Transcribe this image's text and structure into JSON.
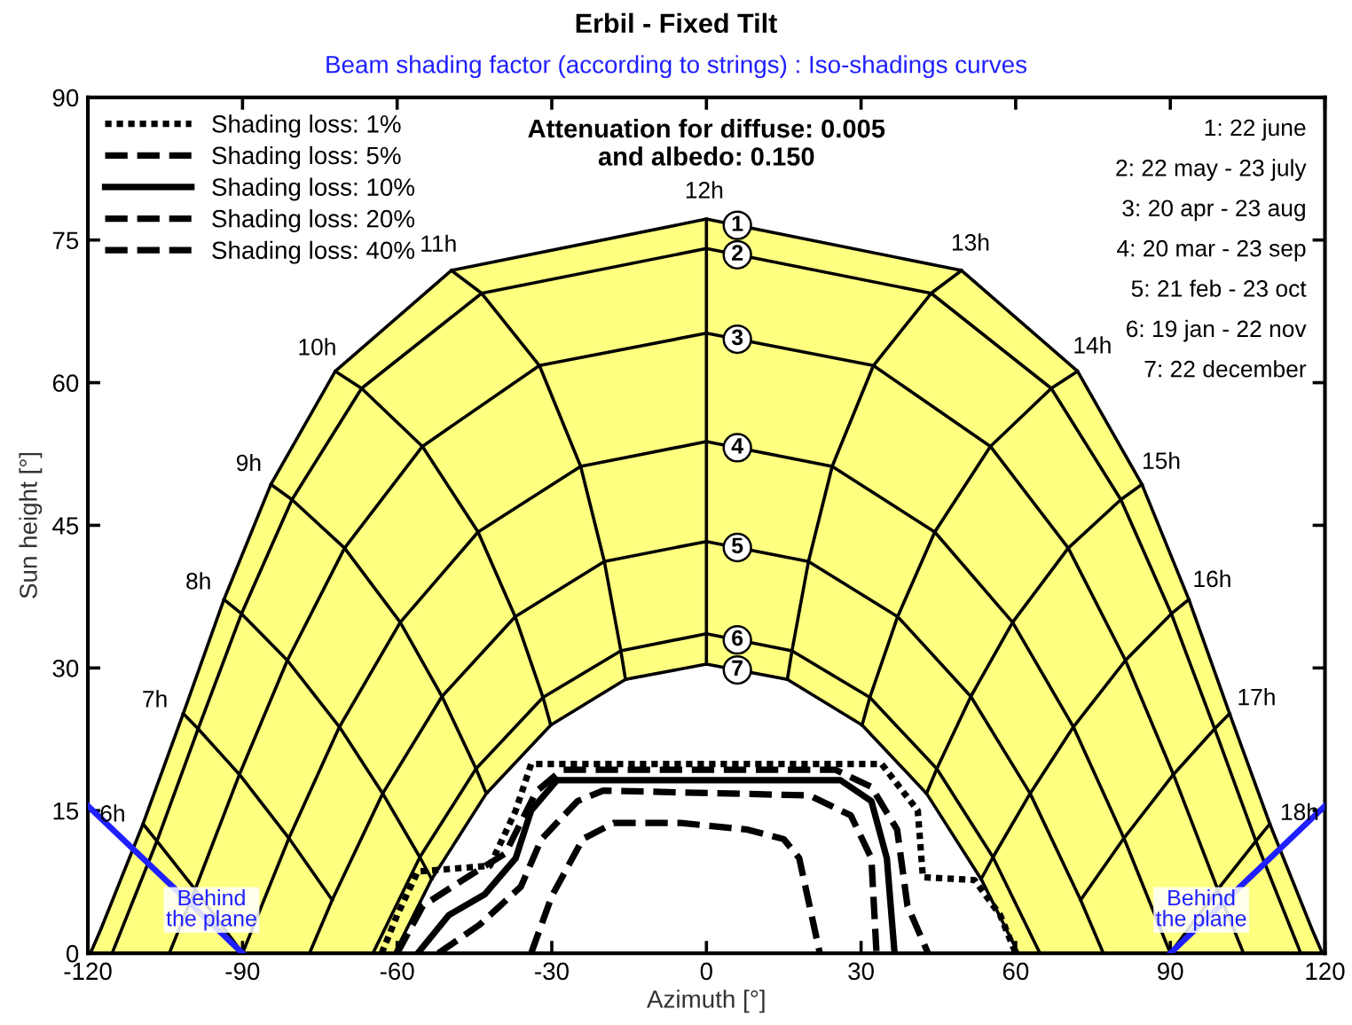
{
  "chart_data": {
    "type": "line",
    "title": "Erbil - Fixed Tilt",
    "subtitle": "Beam shading factor (according to strings) : Iso-shadings curves",
    "xlabel": "Azimuth [°]",
    "ylabel": "Sun height [°]",
    "xlim": [
      -120,
      120
    ],
    "xticks": [
      -120,
      -90,
      -60,
      -30,
      0,
      30,
      60,
      90,
      120
    ],
    "ylim": [
      0,
      90
    ],
    "yticks": [
      0,
      15,
      30,
      45,
      60,
      75,
      90
    ],
    "grid": false,
    "legend": "top left",
    "series": [
      {
        "name": "1",
        "type": "area",
        "color": "#ffff80",
        "x": [
          -119.5,
          -117.5,
          -109.3,
          -101.5,
          -93.6,
          -84.5,
          -72.0,
          -49.5,
          0,
          49.5,
          72.0,
          84.5,
          93.6,
          101.5,
          109.3,
          117.5,
          119.5
        ],
        "values": [
          0,
          2.5,
          13.6,
          25.2,
          37.2,
          49.3,
          61.2,
          71.8,
          77.2,
          71.8,
          61.2,
          49.3,
          37.2,
          25.2,
          13.6,
          2.5,
          0
        ]
      },
      {
        "name": "7",
        "type": "area",
        "color": "#ffffff",
        "x": [
          -60.5,
          -53.3,
          -42.7,
          -30.2,
          -15.7,
          0,
          15.7,
          30.2,
          42.7,
          53.3,
          60.5
        ],
        "values": [
          0,
          7.8,
          16.8,
          24.0,
          28.8,
          30.4,
          28.8,
          24.0,
          16.8,
          7.8,
          0
        ]
      },
      {
        "name": "2",
        "color": "#000000",
        "x": [
          -115.3,
          -106.6,
          -98.6,
          -90.2,
          -80.4,
          -66.9,
          -43.6,
          0,
          43.6,
          66.9,
          80.4,
          90.2,
          98.6,
          106.6,
          115.3
        ],
        "values": [
          0,
          11.8,
          23.6,
          35.7,
          47.7,
          59.4,
          69.4,
          74.1,
          69.4,
          59.4,
          47.7,
          35.7,
          23.6,
          11.8,
          0
        ]
      },
      {
        "name": "3",
        "color": "#000000",
        "x": [
          -104.2,
          -99.2,
          -90.6,
          -81.3,
          -70.2,
          -55.1,
          -32.4,
          0,
          32.4,
          55.1,
          70.2,
          81.3,
          90.6,
          99.2,
          104.2
        ],
        "values": [
          0,
          6.7,
          18.8,
          30.8,
          42.6,
          53.3,
          61.8,
          65.2,
          61.8,
          53.3,
          42.6,
          30.8,
          18.8,
          6.7,
          0
        ]
      },
      {
        "name": "4",
        "color": "#000000",
        "x": [
          -90,
          -81.0,
          -71.2,
          -59.4,
          -44.3,
          -24.4,
          0,
          24.4,
          44.3,
          59.4,
          71.2,
          81.0,
          90
        ],
        "values": [
          0,
          12.1,
          23.8,
          34.8,
          44.3,
          51.2,
          53.8,
          51.2,
          44.3,
          34.8,
          23.8,
          12.1,
          0
        ]
      },
      {
        "name": "5",
        "color": "#000000",
        "x": [
          -77.0,
          -72.6,
          -62.8,
          -51.3,
          -37.1,
          -19.8,
          0,
          19.8,
          37.1,
          51.3,
          62.8,
          72.6,
          77.0
        ],
        "values": [
          0,
          5.6,
          16.8,
          27.0,
          35.4,
          41.2,
          43.3,
          41.2,
          35.4,
          27.0,
          16.8,
          5.6,
          0
        ]
      },
      {
        "name": "6",
        "color": "#000000",
        "x": [
          -64.7,
          -55.6,
          -44.7,
          -31.7,
          -16.6,
          0,
          16.6,
          31.7,
          44.7,
          55.6,
          64.7
        ],
        "values": [
          0,
          10.1,
          19.4,
          26.9,
          31.8,
          33.6,
          31.8,
          26.9,
          19.4,
          10.1,
          0
        ]
      },
      {
        "color": "#000000",
        "x": [
          -109.3,
          -106.6,
          -99.2,
          -90
        ],
        "values": [
          13.6,
          11.8,
          6.7,
          0
        ]
      },
      {
        "color": "#000000",
        "x": [
          -101.5,
          -98.6,
          -90.6,
          -81.0,
          -72.6
        ],
        "values": [
          25.2,
          23.6,
          18.8,
          12.1,
          5.6
        ]
      },
      {
        "color": "#000000",
        "x": [
          -93.6,
          -90.2,
          -81.3,
          -71.2,
          -62.8,
          -55.6,
          -53.3
        ],
        "values": [
          37.2,
          35.7,
          30.8,
          23.8,
          16.8,
          10.1,
          7.8
        ]
      },
      {
        "color": "#000000",
        "x": [
          -84.5,
          -80.4,
          -70.2,
          -59.4,
          -51.3,
          -44.7,
          -42.7
        ],
        "values": [
          49.3,
          47.7,
          42.6,
          34.8,
          27.0,
          19.4,
          16.8
        ]
      },
      {
        "color": "#000000",
        "x": [
          -72.0,
          -66.9,
          -55.1,
          -44.3,
          -37.1,
          -31.7,
          -30.2
        ],
        "values": [
          61.2,
          59.4,
          53.3,
          44.3,
          35.4,
          26.9,
          24.0
        ]
      },
      {
        "color": "#000000",
        "x": [
          -49.5,
          -43.6,
          -32.4,
          -24.4,
          -19.8,
          -16.6,
          -15.7
        ],
        "values": [
          71.8,
          69.4,
          61.8,
          51.2,
          41.2,
          31.8,
          28.8
        ]
      },
      {
        "color": "#000000",
        "x": [
          0,
          0,
          0,
          0,
          0,
          0,
          0
        ],
        "values": [
          77.2,
          74.1,
          65.2,
          53.8,
          43.3,
          33.6,
          30.4
        ]
      },
      {
        "color": "#000000",
        "x": [
          49.5,
          43.6,
          32.4,
          24.4,
          19.8,
          16.6,
          15.7
        ],
        "values": [
          71.8,
          69.4,
          61.8,
          51.2,
          41.2,
          31.8,
          28.8
        ]
      },
      {
        "color": "#000000",
        "x": [
          72.0,
          66.9,
          55.1,
          44.3,
          37.1,
          31.7,
          30.2
        ],
        "values": [
          61.2,
          59.4,
          53.3,
          44.3,
          35.4,
          26.9,
          24.0
        ]
      },
      {
        "color": "#000000",
        "x": [
          84.5,
          80.4,
          70.2,
          59.4,
          51.3,
          44.7,
          42.7
        ],
        "values": [
          49.3,
          47.7,
          42.6,
          34.8,
          27.0,
          19.4,
          16.8
        ]
      },
      {
        "color": "#000000",
        "x": [
          93.6,
          90.2,
          81.3,
          71.2,
          62.8,
          55.6,
          53.3
        ],
        "values": [
          37.2,
          35.7,
          30.8,
          23.8,
          16.8,
          10.1,
          7.8
        ]
      },
      {
        "color": "#000000",
        "x": [
          101.5,
          98.6,
          90.6,
          81.0,
          72.6
        ],
        "values": [
          25.2,
          23.6,
          18.8,
          12.1,
          5.6
        ]
      },
      {
        "color": "#000000",
        "x": [
          109.3,
          106.6,
          99.2,
          90
        ],
        "values": [
          13.6,
          11.8,
          6.7,
          0
        ]
      },
      {
        "name": "Shading loss: 1%",
        "color": "#000000",
        "line_style": "dotted",
        "x": [
          -63,
          -60,
          -56,
          -42,
          -37,
          -34,
          34,
          41,
          42,
          52,
          57,
          60
        ],
        "values": [
          0,
          4,
          8.6,
          9.2,
          15,
          19.9,
          19.9,
          15,
          8,
          7.7,
          4,
          0
        ]
      },
      {
        "name": "Shading loss: 5%",
        "color": "#000000",
        "line_style": "dashed",
        "x": [
          -60,
          -55,
          -47,
          -39,
          -33,
          -28,
          25,
          32,
          37,
          39,
          43
        ],
        "values": [
          0,
          5,
          7.8,
          10.5,
          17,
          19.3,
          19.3,
          17.5,
          13,
          5,
          0
        ]
      },
      {
        "name": "Shading loss: 10%",
        "color": "#000000",
        "line_style": "solid",
        "x": [
          -56,
          -50,
          -43,
          -37,
          -34,
          -29,
          26,
          32,
          35,
          36.5
        ],
        "values": [
          0,
          4,
          6.2,
          10,
          15,
          18.2,
          18.2,
          16,
          10,
          0
        ]
      },
      {
        "name": "Shading loss: 20%",
        "color": "#000000",
        "line_style": "dashed",
        "x": [
          -52,
          -44,
          -36,
          -32,
          -25,
          -20,
          20,
          28,
          32,
          33
        ],
        "values": [
          0,
          3,
          7,
          12,
          16,
          17.1,
          16.6,
          14.5,
          10,
          0
        ]
      },
      {
        "name": "Shading loss: 40%",
        "color": "#000000",
        "line_style": "dashed",
        "x": [
          -34,
          -30,
          -24,
          -18,
          -5,
          8,
          15,
          18,
          22
        ],
        "values": [
          0,
          6,
          12,
          13.7,
          13.7,
          13,
          12,
          10,
          0
        ]
      },
      {
        "name": "Behind the plane",
        "color": "#1f1fff",
        "x": [
          -120,
          -90
        ],
        "values": [
          15.5,
          0
        ]
      },
      {
        "name": "Behind the plane",
        "color": "#1f1fff",
        "x": [
          90,
          120
        ],
        "values": [
          0,
          15.5
        ]
      }
    ],
    "annotations": [
      "Attenuation for diffuse: 0.005\nand albedo: 0.150",
      "1: 22 june",
      "2: 22 may - 23 july",
      "3: 20 apr - 23 aug",
      "4: 20 mar - 23 sep",
      "5: 21 feb - 23 oct",
      "6: 19 jan - 22 nov",
      "7: 22 december",
      {
        "text": "6h",
        "x": -109.3,
        "y": 13.6
      },
      {
        "text": "7h",
        "x": -101.5,
        "y": 25.2
      },
      {
        "text": "8h",
        "x": -93.6,
        "y": 37.2
      },
      {
        "text": "9h",
        "x": -84.5,
        "y": 49.3
      },
      {
        "text": "10h",
        "x": -72.0,
        "y": 61.2
      },
      {
        "text": "11h",
        "x": -49.5,
        "y": 71.8
      },
      {
        "text": "12h",
        "x": 0,
        "y": 77.2
      },
      {
        "text": "13h",
        "x": 49.5,
        "y": 71.8
      },
      {
        "text": "14h",
        "x": 72.0,
        "y": 61.2
      },
      {
        "text": "15h",
        "x": 84.5,
        "y": 49.3
      },
      {
        "text": "16h",
        "x": 93.6,
        "y": 37.2
      },
      {
        "text": "17h",
        "x": 101.5,
        "y": 25.2
      },
      {
        "text": "18h",
        "x": 109.3,
        "y": 13.6
      }
    ]
  }
}
